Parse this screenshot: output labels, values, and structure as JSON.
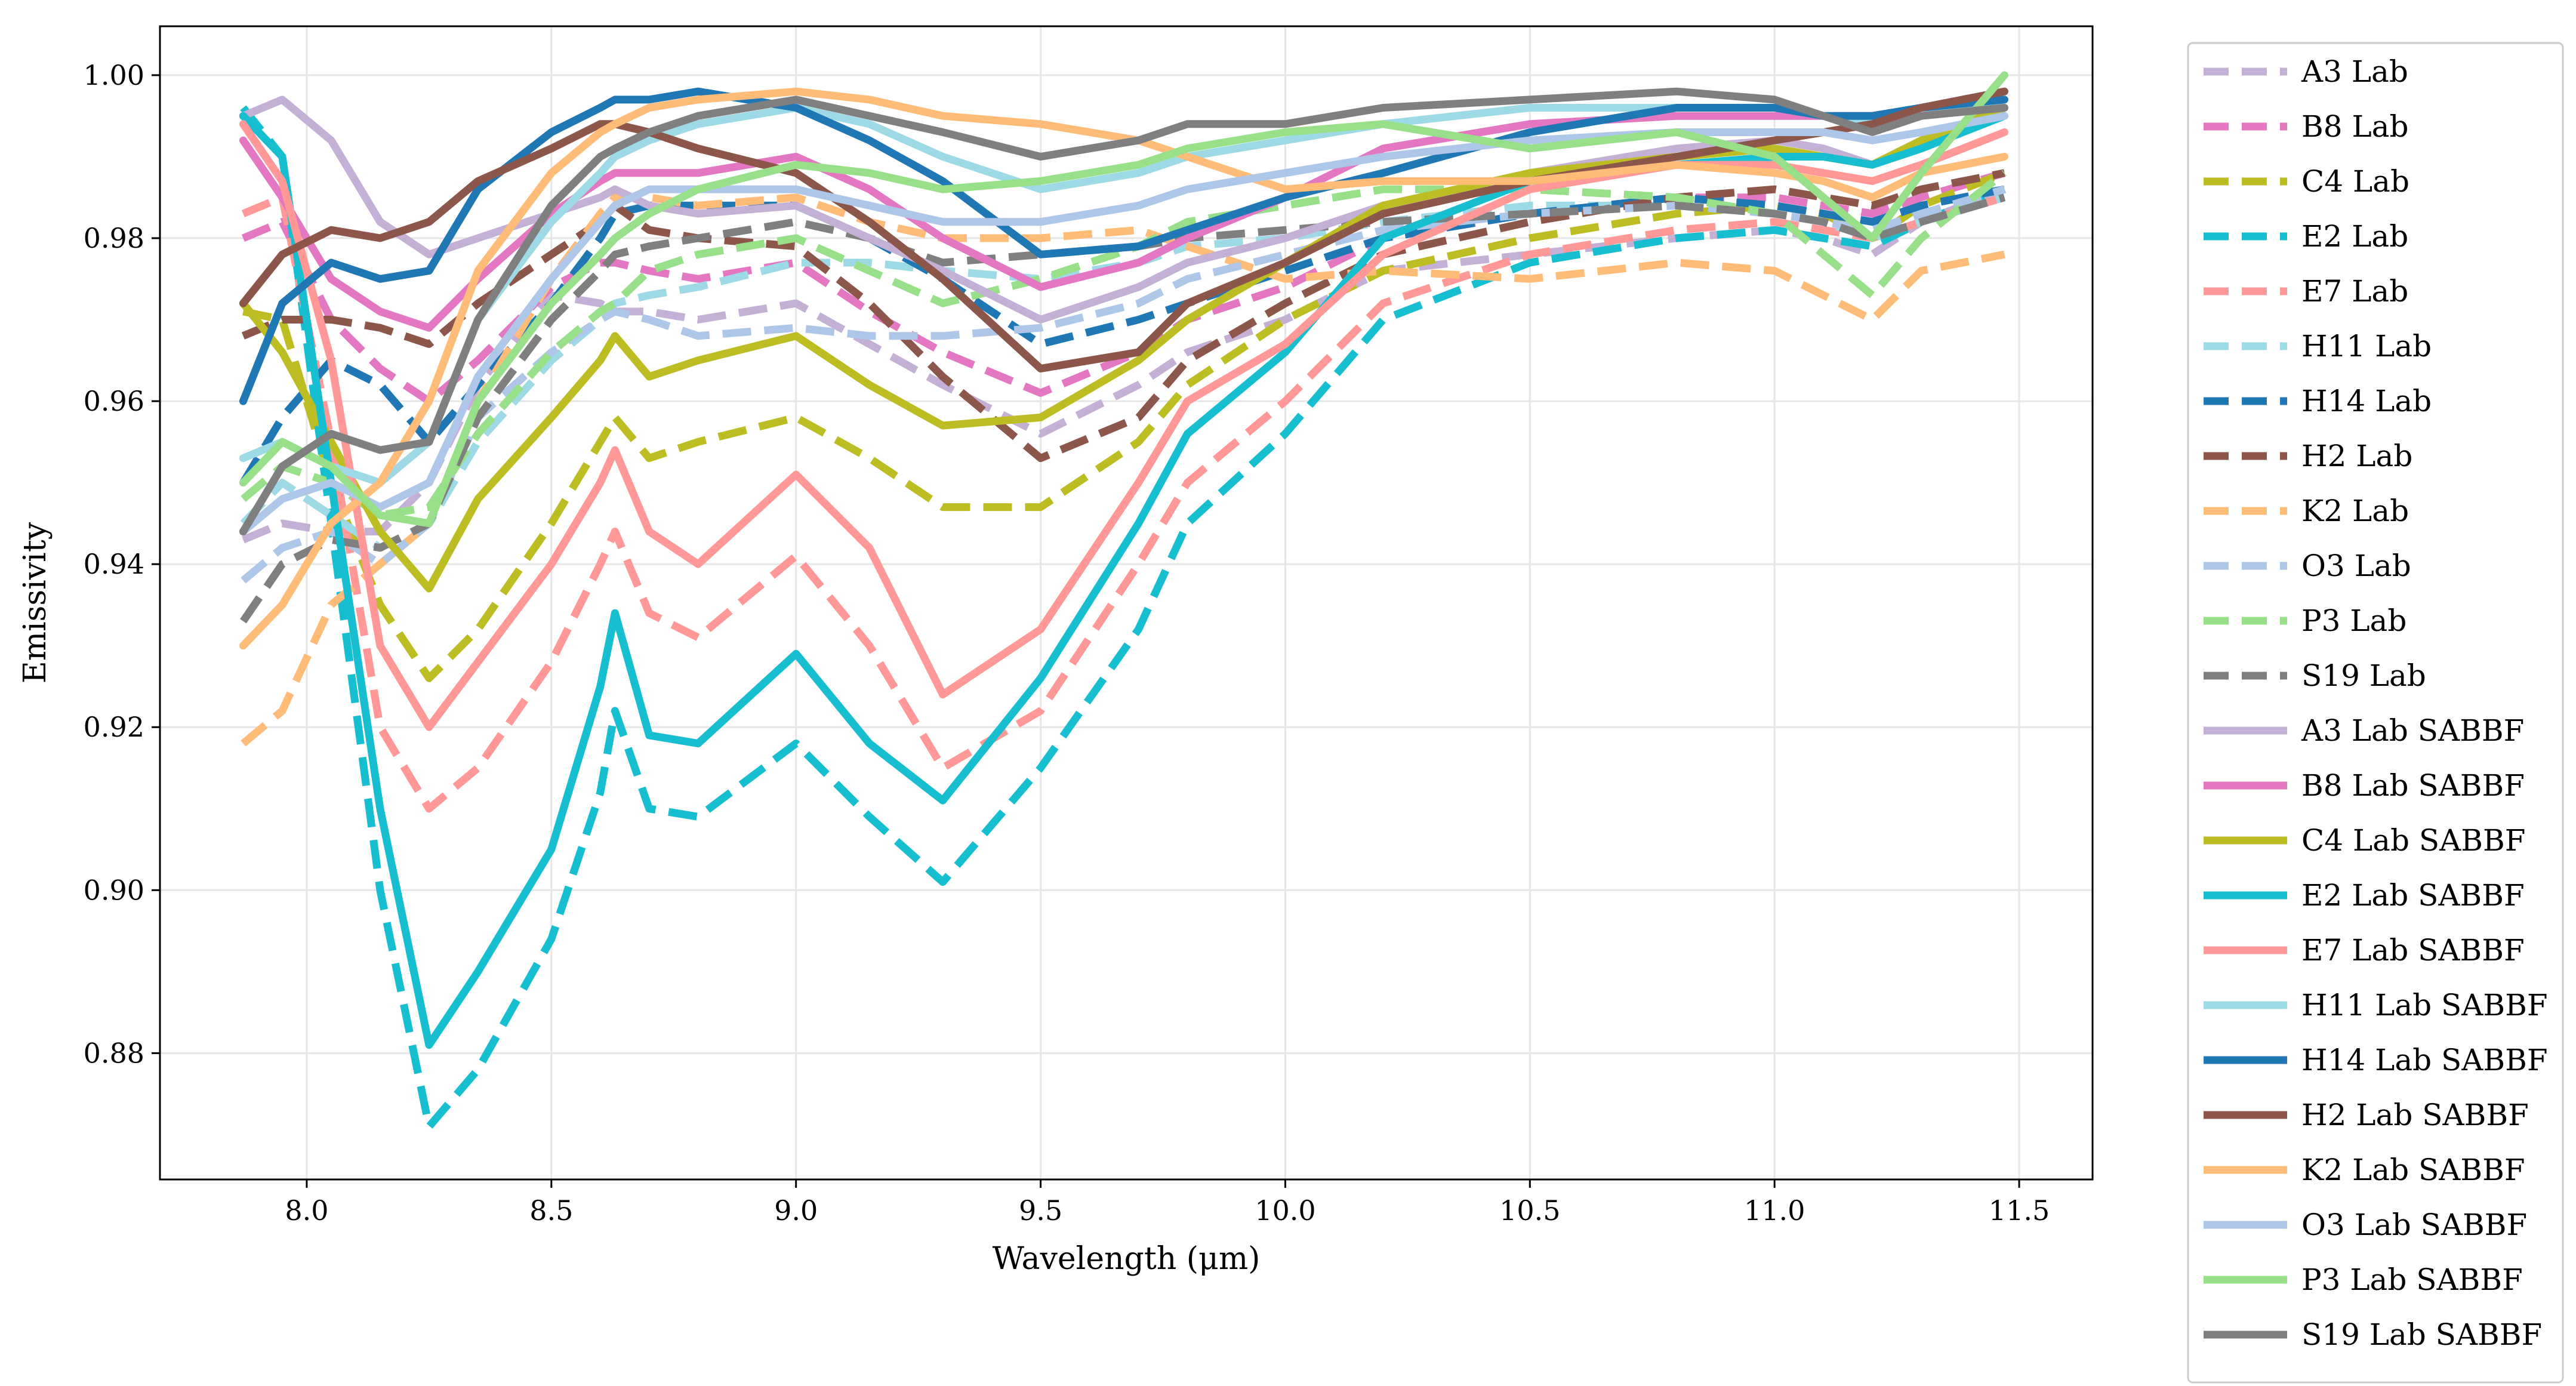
{
  "chart_data": {
    "type": "line",
    "title": "",
    "xlabel": "Wavelength (μm)",
    "ylabel": "Emissivity",
    "xlim": [
      7.7,
      11.65
    ],
    "ylim": [
      0.8645,
      1.006
    ],
    "xticks": [
      8.0,
      8.5,
      9.0,
      9.5,
      10.0,
      10.5,
      11.0,
      11.5
    ],
    "xtick_labels": [
      "8.0",
      "8.5",
      "9.0",
      "9.5",
      "10.0",
      "10.5",
      "11.0",
      "11.5"
    ],
    "yticks": [
      0.88,
      0.9,
      0.92,
      0.94,
      0.96,
      0.98,
      1.0
    ],
    "ytick_labels": [
      "0.88",
      "0.90",
      "0.92",
      "0.94",
      "0.96",
      "0.98",
      "1.00"
    ],
    "grid": true,
    "legend_position": "outside-right",
    "x": [
      7.87,
      7.95,
      8.05,
      8.15,
      8.25,
      8.35,
      8.5,
      8.6,
      8.63,
      8.7,
      8.8,
      9.0,
      9.15,
      9.3,
      9.5,
      9.7,
      9.8,
      10.0,
      10.2,
      10.5,
      10.8,
      11.0,
      11.1,
      11.2,
      11.3,
      11.47
    ],
    "series": [
      {
        "name": "A3 Lab",
        "color": "#c5b0d5",
        "dash": true,
        "values": [
          0.943,
          0.945,
          0.944,
          0.944,
          0.95,
          0.962,
          0.973,
          0.972,
          0.971,
          0.971,
          0.97,
          0.972,
          0.967,
          0.962,
          0.956,
          0.962,
          0.966,
          0.97,
          0.976,
          0.978,
          0.98,
          0.981,
          0.98,
          0.978,
          0.982,
          0.986
        ]
      },
      {
        "name": "B8 Lab",
        "color": "#e377c2",
        "dash": true,
        "values": [
          0.98,
          0.982,
          0.97,
          0.964,
          0.96,
          0.965,
          0.974,
          0.977,
          0.977,
          0.976,
          0.975,
          0.977,
          0.971,
          0.966,
          0.961,
          0.966,
          0.97,
          0.974,
          0.98,
          0.983,
          0.985,
          0.985,
          0.984,
          0.983,
          0.985,
          0.988
        ]
      },
      {
        "name": "C4 Lab",
        "color": "#bcbd22",
        "dash": true,
        "values": [
          0.971,
          0.97,
          0.95,
          0.935,
          0.926,
          0.932,
          0.945,
          0.955,
          0.958,
          0.953,
          0.955,
          0.958,
          0.953,
          0.947,
          0.947,
          0.955,
          0.962,
          0.97,
          0.976,
          0.98,
          0.983,
          0.984,
          0.983,
          0.98,
          0.984,
          0.988
        ]
      },
      {
        "name": "E2 Lab",
        "color": "#17becf",
        "dash": true,
        "values": [
          0.996,
          0.99,
          0.945,
          0.9,
          0.871,
          0.878,
          0.894,
          0.912,
          0.922,
          0.91,
          0.909,
          0.918,
          0.909,
          0.901,
          0.915,
          0.932,
          0.945,
          0.956,
          0.97,
          0.977,
          0.98,
          0.981,
          0.98,
          0.979,
          0.982,
          0.986
        ]
      },
      {
        "name": "E7 Lab",
        "color": "#ff9896",
        "dash": true,
        "values": [
          0.983,
          0.985,
          0.955,
          0.92,
          0.91,
          0.915,
          0.928,
          0.94,
          0.944,
          0.934,
          0.931,
          0.941,
          0.93,
          0.915,
          0.922,
          0.94,
          0.95,
          0.96,
          0.972,
          0.978,
          0.981,
          0.982,
          0.981,
          0.98,
          0.982,
          0.985
        ]
      },
      {
        "name": "H11 Lab",
        "color": "#9edae5",
        "dash": true,
        "values": [
          0.945,
          0.95,
          0.946,
          0.942,
          0.945,
          0.955,
          0.965,
          0.97,
          0.972,
          0.973,
          0.974,
          0.977,
          0.977,
          0.976,
          0.975,
          0.977,
          0.979,
          0.98,
          0.982,
          0.984,
          0.984,
          0.983,
          0.982,
          0.98,
          0.982,
          0.985
        ]
      },
      {
        "name": "H14 Lab",
        "color": "#1f77b4",
        "dash": true,
        "values": [
          0.95,
          0.958,
          0.965,
          0.962,
          0.955,
          0.962,
          0.972,
          0.98,
          0.983,
          0.984,
          0.984,
          0.984,
          0.98,
          0.975,
          0.967,
          0.97,
          0.972,
          0.976,
          0.98,
          0.983,
          0.985,
          0.984,
          0.983,
          0.982,
          0.984,
          0.986
        ]
      },
      {
        "name": "H2 Lab",
        "color": "#8c564b",
        "dash": true,
        "values": [
          0.968,
          0.97,
          0.97,
          0.969,
          0.967,
          0.972,
          0.978,
          0.982,
          0.984,
          0.981,
          0.98,
          0.979,
          0.972,
          0.963,
          0.953,
          0.958,
          0.965,
          0.972,
          0.978,
          0.982,
          0.985,
          0.986,
          0.985,
          0.984,
          0.986,
          0.988
        ]
      },
      {
        "name": "K2 Lab",
        "color": "#ffbb78",
        "dash": true,
        "values": [
          0.918,
          0.922,
          0.935,
          0.94,
          0.945,
          0.96,
          0.975,
          0.983,
          0.985,
          0.985,
          0.984,
          0.985,
          0.982,
          0.98,
          0.98,
          0.981,
          0.979,
          0.975,
          0.976,
          0.975,
          0.977,
          0.976,
          0.973,
          0.97,
          0.976,
          0.978
        ]
      },
      {
        "name": "O3 Lab",
        "color": "#aec7e8",
        "dash": true,
        "values": [
          0.938,
          0.942,
          0.944,
          0.94,
          0.945,
          0.958,
          0.966,
          0.97,
          0.971,
          0.97,
          0.968,
          0.969,
          0.968,
          0.968,
          0.969,
          0.972,
          0.975,
          0.978,
          0.981,
          0.983,
          0.984,
          0.983,
          0.982,
          0.981,
          0.983,
          0.986
        ]
      },
      {
        "name": "P3 Lab",
        "color": "#98df8a",
        "dash": true,
        "values": [
          0.948,
          0.952,
          0.95,
          0.946,
          0.947,
          0.956,
          0.966,
          0.971,
          0.972,
          0.976,
          0.978,
          0.98,
          0.976,
          0.972,
          0.975,
          0.979,
          0.982,
          0.984,
          0.986,
          0.986,
          0.985,
          0.983,
          0.978,
          0.973,
          0.98,
          0.988
        ]
      },
      {
        "name": "S19 Lab",
        "color": "#7f7f7f",
        "dash": true,
        "values": [
          0.933,
          0.94,
          0.943,
          0.942,
          0.945,
          0.958,
          0.97,
          0.976,
          0.978,
          0.979,
          0.98,
          0.982,
          0.98,
          0.977,
          0.978,
          0.979,
          0.98,
          0.981,
          0.982,
          0.983,
          0.984,
          0.983,
          0.982,
          0.98,
          0.982,
          0.985
        ]
      },
      {
        "name": "A3 Lab SABBF",
        "color": "#c5b0d5",
        "dash": false,
        "values": [
          0.995,
          0.997,
          0.992,
          0.982,
          0.978,
          0.98,
          0.983,
          0.985,
          0.986,
          0.984,
          0.983,
          0.984,
          0.98,
          0.976,
          0.97,
          0.974,
          0.977,
          0.98,
          0.984,
          0.988,
          0.991,
          0.992,
          0.991,
          0.989,
          0.992,
          0.996
        ]
      },
      {
        "name": "B8 Lab SABBF",
        "color": "#e377c2",
        "dash": false,
        "values": [
          0.992,
          0.985,
          0.975,
          0.971,
          0.969,
          0.975,
          0.983,
          0.987,
          0.988,
          0.988,
          0.988,
          0.99,
          0.986,
          0.98,
          0.974,
          0.977,
          0.98,
          0.985,
          0.991,
          0.994,
          0.995,
          0.995,
          0.995,
          0.995,
          0.996,
          0.998
        ]
      },
      {
        "name": "C4 Lab SABBF",
        "color": "#bcbd22",
        "dash": false,
        "values": [
          0.972,
          0.966,
          0.955,
          0.944,
          0.937,
          0.948,
          0.958,
          0.965,
          0.968,
          0.963,
          0.965,
          0.968,
          0.962,
          0.957,
          0.958,
          0.965,
          0.97,
          0.977,
          0.984,
          0.988,
          0.99,
          0.991,
          0.99,
          0.989,
          0.992,
          0.996
        ]
      },
      {
        "name": "E2 Lab SABBF",
        "color": "#17becf",
        "dash": false,
        "values": [
          0.995,
          0.99,
          0.95,
          0.91,
          0.881,
          0.89,
          0.905,
          0.925,
          0.934,
          0.919,
          0.918,
          0.929,
          0.918,
          0.911,
          0.926,
          0.945,
          0.956,
          0.966,
          0.98,
          0.987,
          0.989,
          0.99,
          0.99,
          0.989,
          0.991,
          0.995
        ]
      },
      {
        "name": "E7 Lab SABBF",
        "color": "#ff9896",
        "dash": false,
        "values": [
          0.994,
          0.987,
          0.965,
          0.93,
          0.92,
          0.928,
          0.94,
          0.95,
          0.954,
          0.944,
          0.94,
          0.951,
          0.942,
          0.924,
          0.932,
          0.95,
          0.96,
          0.967,
          0.978,
          0.986,
          0.989,
          0.989,
          0.988,
          0.987,
          0.989,
          0.993
        ]
      },
      {
        "name": "H11 Lab SABBF",
        "color": "#9edae5",
        "dash": false,
        "values": [
          0.953,
          0.955,
          0.952,
          0.95,
          0.955,
          0.97,
          0.982,
          0.988,
          0.99,
          0.992,
          0.994,
          0.996,
          0.994,
          0.99,
          0.986,
          0.988,
          0.99,
          0.992,
          0.994,
          0.996,
          0.996,
          0.996,
          0.995,
          0.994,
          0.995,
          0.997
        ]
      },
      {
        "name": "H14 Lab SABBF",
        "color": "#1f77b4",
        "dash": false,
        "values": [
          0.96,
          0.972,
          0.977,
          0.975,
          0.976,
          0.986,
          0.993,
          0.996,
          0.997,
          0.997,
          0.998,
          0.996,
          0.992,
          0.987,
          0.978,
          0.979,
          0.981,
          0.985,
          0.988,
          0.993,
          0.996,
          0.996,
          0.995,
          0.995,
          0.996,
          0.997
        ]
      },
      {
        "name": "H2 Lab SABBF",
        "color": "#8c564b",
        "dash": false,
        "values": [
          0.972,
          0.978,
          0.981,
          0.98,
          0.982,
          0.987,
          0.991,
          0.994,
          0.994,
          0.993,
          0.991,
          0.988,
          0.982,
          0.975,
          0.964,
          0.966,
          0.972,
          0.977,
          0.983,
          0.987,
          0.99,
          0.992,
          0.993,
          0.994,
          0.996,
          0.998
        ]
      },
      {
        "name": "K2 Lab SABBF",
        "color": "#ffbb78",
        "dash": false,
        "values": [
          0.93,
          0.935,
          0.945,
          0.95,
          0.96,
          0.976,
          0.988,
          0.993,
          0.994,
          0.996,
          0.997,
          0.998,
          0.997,
          0.995,
          0.994,
          0.992,
          0.99,
          0.986,
          0.987,
          0.987,
          0.989,
          0.988,
          0.987,
          0.985,
          0.988,
          0.99
        ]
      },
      {
        "name": "O3 Lab SABBF",
        "color": "#aec7e8",
        "dash": false,
        "values": [
          0.944,
          0.948,
          0.95,
          0.947,
          0.95,
          0.963,
          0.975,
          0.982,
          0.984,
          0.986,
          0.986,
          0.986,
          0.984,
          0.982,
          0.982,
          0.984,
          0.986,
          0.988,
          0.99,
          0.992,
          0.993,
          0.993,
          0.993,
          0.992,
          0.993,
          0.995
        ]
      },
      {
        "name": "P3 Lab SABBF",
        "color": "#98df8a",
        "dash": false,
        "values": [
          0.95,
          0.955,
          0.952,
          0.946,
          0.945,
          0.96,
          0.972,
          0.978,
          0.98,
          0.983,
          0.986,
          0.989,
          0.988,
          0.986,
          0.987,
          0.989,
          0.991,
          0.993,
          0.994,
          0.991,
          0.993,
          0.99,
          0.985,
          0.98,
          0.988,
          1.0
        ]
      },
      {
        "name": "S19 Lab SABBF",
        "color": "#7f7f7f",
        "dash": false,
        "values": [
          0.944,
          0.952,
          0.956,
          0.954,
          0.955,
          0.97,
          0.984,
          0.99,
          0.991,
          0.993,
          0.995,
          0.997,
          0.995,
          0.993,
          0.99,
          0.992,
          0.994,
          0.994,
          0.996,
          0.997,
          0.998,
          0.997,
          0.995,
          0.993,
          0.995,
          0.996
        ]
      }
    ]
  }
}
